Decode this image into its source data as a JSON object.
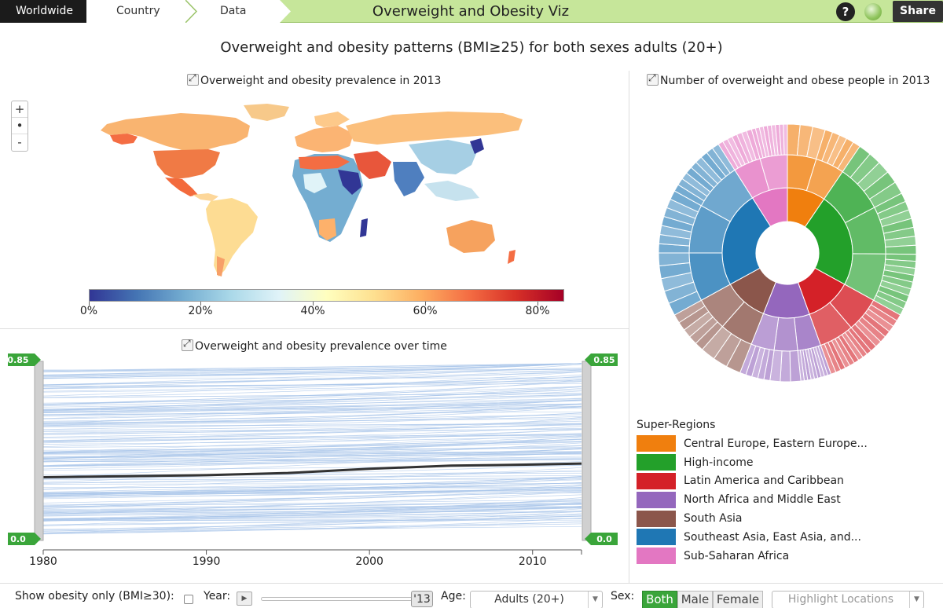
{
  "header": {
    "breadcrumbs": [
      "Worldwide",
      "Country",
      "Data"
    ],
    "app_title": "Overweight and Obesity Viz",
    "help_label": "?",
    "share_label": "Share"
  },
  "main_title": "Overweight and obesity patterns (BMI≥25) for both sexes adults (20+)",
  "map_panel": {
    "title": "Overweight and obesity prevalence in 2013",
    "zoom_in": "+",
    "zoom_reset": "•",
    "zoom_out": "-",
    "colorbar_ticks": [
      "0%",
      "20%",
      "40%",
      "60%",
      "80%"
    ],
    "colorbar_colors": [
      "#313695",
      "#4575b4",
      "#74add1",
      "#abd9e9",
      "#e0f3f8",
      "#ffffbf",
      "#fee090",
      "#fdae61",
      "#f46d43",
      "#d73027",
      "#a50026"
    ]
  },
  "time_panel": {
    "title": "Overweight and obesity prevalence over time",
    "range_max": "0.85",
    "range_min": "0.0",
    "x_ticks": [
      "1980",
      "1990",
      "2000",
      "2010"
    ]
  },
  "sunburst_panel": {
    "title": "Number of overweight and obese people in 2013"
  },
  "legend": {
    "title": "Super-Regions",
    "items": [
      {
        "label": "Central Europe, Eastern Europe...",
        "color": "#f07f0e"
      },
      {
        "label": "High-income",
        "color": "#23a02a"
      },
      {
        "label": "Latin America and Caribbean",
        "color": "#d42128"
      },
      {
        "label": "North Africa and Middle East",
        "color": "#9467bd"
      },
      {
        "label": "South Asia",
        "color": "#8b564b"
      },
      {
        "label": "Southeast Asia, East Asia, and...",
        "color": "#1f77b4"
      },
      {
        "label": "Sub-Saharan Africa",
        "color": "#e377c2"
      }
    ]
  },
  "controls": {
    "show_obesity_label": "Show obesity only (BMI≥30):",
    "year_label": "Year:",
    "year_value": "'13",
    "age_label": "Age:",
    "age_value": "Adults (20+)",
    "sex_label": "Sex:",
    "sex_options": [
      "Both",
      "Male",
      "Female"
    ],
    "highlight_placeholder": "Highlight Locations"
  },
  "chart_data": [
    {
      "type": "line",
      "title": "Overweight and obesity prevalence over time",
      "x": [
        1980,
        1985,
        1990,
        1995,
        2000,
        2005,
        2010,
        2013
      ],
      "series": [
        {
          "values": [
            0.3,
            0.305,
            0.31,
            0.32,
            0.34,
            0.355,
            0.36,
            0.365
          ]
        }
      ],
      "ylim": [
        0.0,
        0.85
      ],
      "xlim": [
        1980,
        2013
      ]
    }
  ]
}
